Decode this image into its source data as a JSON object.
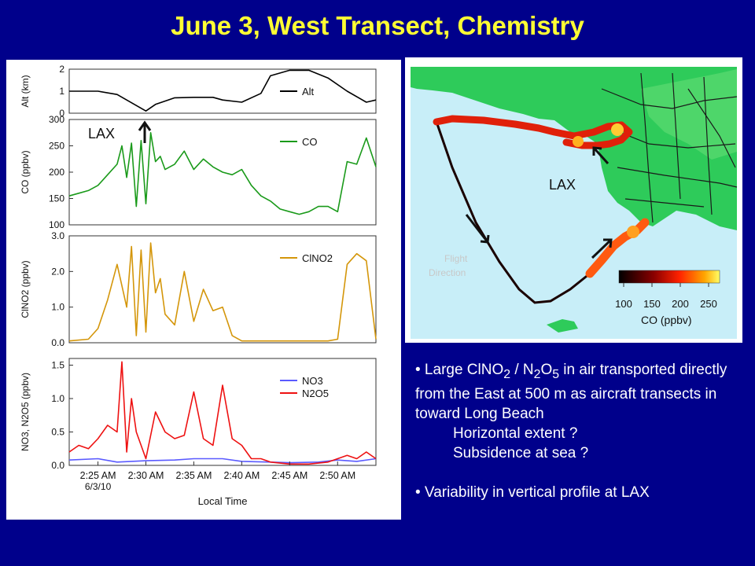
{
  "slide": {
    "title": "June 3, West Transect, Chemistry"
  },
  "bullets": {
    "b1_prefix": "• Large ClNO",
    "b1_sub1": "2",
    "b1_mid": " / N",
    "b1_sub2": "2",
    "b1_o": "O",
    "b1_sub3": "5",
    "b1_rest": " in air transported directly from the East at 500 m as aircraft transects in toward Long Beach",
    "q1": "Horizontal extent ?",
    "q2": "Subsidence at sea ?",
    "b2": "• Variability in vertical profile at LAX"
  },
  "colors": {
    "background": "#00008b",
    "title": "#ffff33",
    "alt": "#000000",
    "co": "#1a9a1a",
    "clno2": "#d4960a",
    "no3": "#5a5aff",
    "n2o5": "#ee1111",
    "sea": "#c8eef8",
    "land": "#2ecb5a"
  },
  "chart_data": [
    {
      "type": "line",
      "panel": "altitude",
      "ylabel": "Alt (km)",
      "ylim": [
        0,
        2
      ],
      "yticks": [
        "0",
        "1",
        "2"
      ],
      "series": [
        {
          "name": "Alt",
          "color": "#000000",
          "x": [
            "02:22",
            "02:25",
            "02:27",
            "02:28",
            "02:30",
            "02:31",
            "02:33",
            "02:35",
            "02:37",
            "02:38",
            "02:40",
            "02:42",
            "02:43",
            "02:45",
            "02:47",
            "02:49",
            "02:51",
            "02:53",
            "02:54"
          ],
          "y": [
            1.0,
            1.0,
            0.85,
            0.6,
            0.1,
            0.4,
            0.7,
            0.72,
            0.72,
            0.6,
            0.5,
            0.9,
            1.7,
            1.95,
            1.95,
            1.6,
            1.0,
            0.5,
            0.6
          ]
        }
      ],
      "annotation": "LAX"
    },
    {
      "type": "line",
      "panel": "co",
      "ylabel": "CO (ppbv)",
      "ylim": [
        100,
        300
      ],
      "yticks": [
        "100",
        "150",
        "200",
        "250",
        "300"
      ],
      "series": [
        {
          "name": "CO",
          "color": "#1a9a1a",
          "x": [
            "02:22",
            "02:23",
            "02:24",
            "02:25",
            "02:26",
            "02:27",
            "02:27.5",
            "02:28",
            "02:28.5",
            "02:29",
            "02:29.5",
            "02:30",
            "02:30.5",
            "02:31",
            "02:31.5",
            "02:32",
            "02:33",
            "02:34",
            "02:35",
            "02:36",
            "02:37",
            "02:38",
            "02:39",
            "02:40",
            "02:41",
            "02:42",
            "02:43",
            "02:44",
            "02:45",
            "02:46",
            "02:47",
            "02:48",
            "02:49",
            "02:50",
            "02:51",
            "02:52",
            "02:53",
            "02:54"
          ],
          "y": [
            155,
            160,
            165,
            175,
            195,
            215,
            250,
            190,
            255,
            135,
            260,
            140,
            275,
            220,
            230,
            205,
            215,
            240,
            205,
            225,
            210,
            200,
            195,
            205,
            175,
            155,
            145,
            130,
            125,
            120,
            125,
            135,
            135,
            125,
            220,
            215,
            265,
            210
          ]
        }
      ]
    },
    {
      "type": "line",
      "panel": "clno2",
      "ylabel": "ClNO2 (ppbv)",
      "ylim": [
        0,
        3
      ],
      "yticks": [
        "0.0",
        "1.0",
        "2.0",
        "3.0"
      ],
      "series": [
        {
          "name": "ClNO2",
          "color": "#d4960a",
          "x": [
            "02:22",
            "02:24",
            "02:25",
            "02:26",
            "02:27",
            "02:28",
            "02:28.5",
            "02:29",
            "02:29.5",
            "02:30",
            "02:30.5",
            "02:31",
            "02:31.5",
            "02:32",
            "02:33",
            "02:34",
            "02:35",
            "02:36",
            "02:37",
            "02:38",
            "02:39",
            "02:40",
            "02:42",
            "02:45",
            "02:49",
            "02:50",
            "02:51",
            "02:52",
            "02:53",
            "02:54"
          ],
          "y": [
            0.05,
            0.1,
            0.4,
            1.2,
            2.2,
            1.0,
            2.7,
            0.2,
            2.6,
            0.3,
            2.8,
            1.4,
            1.8,
            0.8,
            0.5,
            2.0,
            0.6,
            1.5,
            0.9,
            1.0,
            0.2,
            0.05,
            0.05,
            0.05,
            0.05,
            0.1,
            2.2,
            2.5,
            2.3,
            0.1
          ]
        }
      ]
    },
    {
      "type": "line",
      "panel": "no3_n2o5",
      "ylabel": "NO3, N2O5 (ppbv)",
      "xlabel": "Local Time",
      "ylim": [
        0,
        1.6
      ],
      "yticks": [
        "0.0",
        "0.5",
        "1.0",
        "1.5"
      ],
      "xticks": [
        "2:25 AM",
        "2:30 AM",
        "2:35 AM",
        "2:40 AM",
        "2:45 AM",
        "2:50 AM"
      ],
      "xtick_sub": "6/3/10",
      "series": [
        {
          "name": "NO3",
          "color": "#5a5aff",
          "x": [
            "02:22",
            "02:25",
            "02:27",
            "02:30",
            "02:33",
            "02:35",
            "02:38",
            "02:40",
            "02:43",
            "02:45",
            "02:48",
            "02:50",
            "02:52",
            "02:54"
          ],
          "y": [
            0.08,
            0.1,
            0.05,
            0.07,
            0.08,
            0.1,
            0.1,
            0.06,
            0.05,
            0.04,
            0.05,
            0.08,
            0.06,
            0.1
          ]
        },
        {
          "name": "N2O5",
          "color": "#ee1111",
          "x": [
            "02:22",
            "02:23",
            "02:24",
            "02:25",
            "02:26",
            "02:27",
            "02:27.5",
            "02:28",
            "02:28.5",
            "02:29",
            "02:30",
            "02:31",
            "02:32",
            "02:33",
            "02:34",
            "02:35",
            "02:36",
            "02:37",
            "02:38",
            "02:39",
            "02:40",
            "02:41",
            "02:42",
            "02:43",
            "02:45",
            "02:47",
            "02:49",
            "02:50",
            "02:51",
            "02:52",
            "02:53",
            "02:54"
          ],
          "y": [
            0.2,
            0.3,
            0.25,
            0.4,
            0.6,
            0.5,
            1.55,
            0.2,
            1.0,
            0.5,
            0.1,
            0.8,
            0.5,
            0.4,
            0.45,
            1.1,
            0.4,
            0.3,
            1.2,
            0.4,
            0.3,
            0.1,
            0.1,
            0.05,
            0.02,
            0.02,
            0.05,
            0.1,
            0.15,
            0.1,
            0.2,
            0.1
          ]
        }
      ]
    },
    {
      "type": "map",
      "panel": "flight_track",
      "colorbar_label": "CO (ppbv)",
      "colorbar_ticks": [
        "100",
        "150",
        "200",
        "250"
      ],
      "labels": [
        "LAX",
        "Flight Direction"
      ]
    }
  ]
}
